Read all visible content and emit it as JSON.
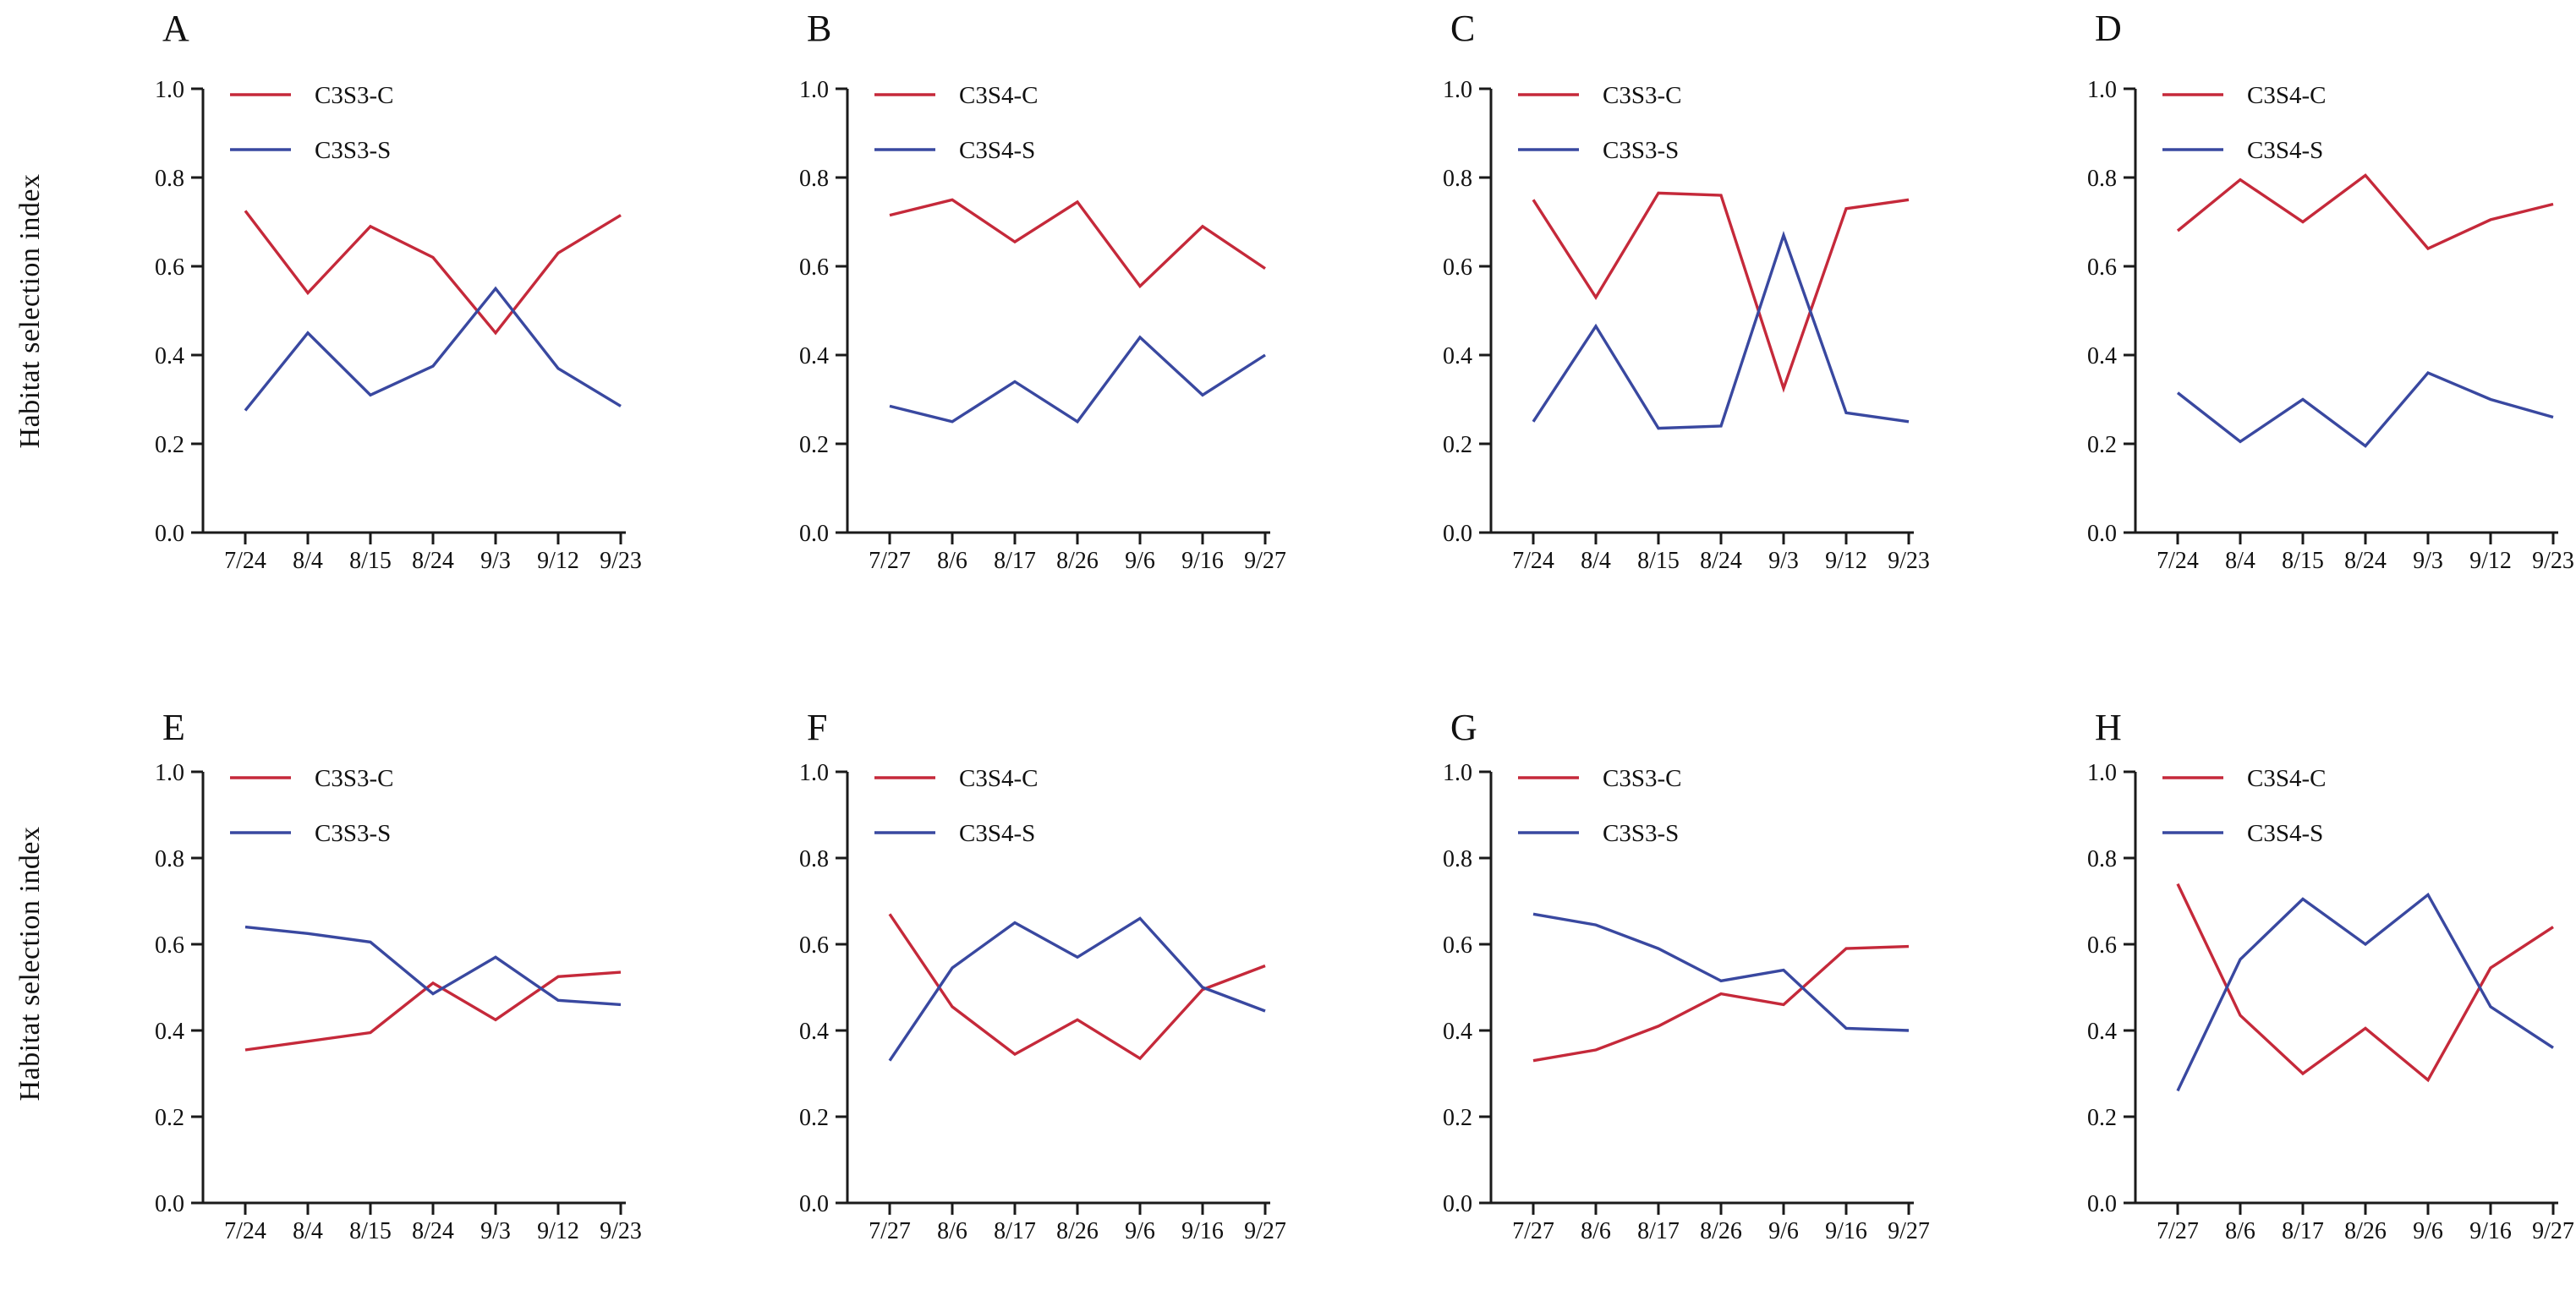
{
  "figure": {
    "ylabel": "Habitat selection index",
    "y_tick_labels": [
      "0.0",
      "0.2",
      "0.4",
      "0.6",
      "0.8",
      "1.0"
    ],
    "colors": {
      "series_c": "#C5293A",
      "series_s": "#3948A0",
      "axis": "#1A1A1A"
    }
  },
  "chart_data": [
    {
      "type": "line",
      "panel": "A",
      "ylim": [
        0,
        1
      ],
      "grid": false,
      "legend_position": "top-left",
      "x": [
        "7/24",
        "8/4",
        "8/15",
        "8/24",
        "9/3",
        "9/12",
        "9/23"
      ],
      "series": [
        {
          "name": "C3S3-C",
          "color_key": "series_c",
          "values": [
            0.725,
            0.54,
            0.69,
            0.62,
            0.45,
            0.63,
            0.715
          ]
        },
        {
          "name": "C3S3-S",
          "color_key": "series_s",
          "values": [
            0.275,
            0.45,
            0.31,
            0.375,
            0.55,
            0.37,
            0.285
          ]
        }
      ]
    },
    {
      "type": "line",
      "panel": "B",
      "ylim": [
        0,
        1
      ],
      "grid": false,
      "legend_position": "top-left",
      "x": [
        "7/27",
        "8/6",
        "8/17",
        "8/26",
        "9/6",
        "9/16",
        "9/27"
      ],
      "series": [
        {
          "name": "C3S4-C",
          "color_key": "series_c",
          "values": [
            0.715,
            0.75,
            0.655,
            0.745,
            0.555,
            0.69,
            0.595
          ]
        },
        {
          "name": "C3S4-S",
          "color_key": "series_s",
          "values": [
            0.285,
            0.25,
            0.34,
            0.25,
            0.44,
            0.31,
            0.4
          ]
        }
      ]
    },
    {
      "type": "line",
      "panel": "C",
      "ylim": [
        0,
        1
      ],
      "grid": false,
      "legend_position": "top-left",
      "x": [
        "7/24",
        "8/4",
        "8/15",
        "8/24",
        "9/3",
        "9/12",
        "9/23"
      ],
      "series": [
        {
          "name": "C3S3-C",
          "color_key": "series_c",
          "values": [
            0.75,
            0.53,
            0.765,
            0.76,
            0.325,
            0.73,
            0.75
          ]
        },
        {
          "name": "C3S3-S",
          "color_key": "series_s",
          "values": [
            0.25,
            0.465,
            0.235,
            0.24,
            0.67,
            0.27,
            0.25
          ]
        }
      ]
    },
    {
      "type": "line",
      "panel": "D",
      "ylim": [
        0,
        1
      ],
      "grid": false,
      "legend_position": "top-left",
      "x": [
        "7/24",
        "8/4",
        "8/15",
        "8/24",
        "9/3",
        "9/12",
        "9/23"
      ],
      "series": [
        {
          "name": "C3S4-C",
          "color_key": "series_c",
          "values": [
            0.68,
            0.795,
            0.7,
            0.805,
            0.64,
            0.705,
            0.74
          ]
        },
        {
          "name": "C3S4-S",
          "color_key": "series_s",
          "values": [
            0.315,
            0.205,
            0.3,
            0.195,
            0.36,
            0.3,
            0.26
          ]
        }
      ]
    },
    {
      "type": "line",
      "panel": "E",
      "ylim": [
        0,
        1
      ],
      "grid": false,
      "legend_position": "top-left",
      "x": [
        "7/24",
        "8/4",
        "8/15",
        "8/24",
        "9/3",
        "9/12",
        "9/23"
      ],
      "series": [
        {
          "name": "C3S3-C",
          "color_key": "series_c",
          "values": [
            0.355,
            0.375,
            0.395,
            0.51,
            0.425,
            0.525,
            0.535
          ]
        },
        {
          "name": "C3S3-S",
          "color_key": "series_s",
          "values": [
            0.64,
            0.625,
            0.605,
            0.485,
            0.57,
            0.47,
            0.46
          ]
        }
      ]
    },
    {
      "type": "line",
      "panel": "F",
      "ylim": [
        0,
        1
      ],
      "grid": false,
      "legend_position": "top-left",
      "x": [
        "7/27",
        "8/6",
        "8/17",
        "8/26",
        "9/6",
        "9/16",
        "9/27"
      ],
      "series": [
        {
          "name": "C3S4-C",
          "color_key": "series_c",
          "values": [
            0.67,
            0.455,
            0.345,
            0.425,
            0.335,
            0.495,
            0.55
          ]
        },
        {
          "name": "C3S4-S",
          "color_key": "series_s",
          "values": [
            0.33,
            0.545,
            0.65,
            0.57,
            0.66,
            0.5,
            0.445
          ]
        }
      ]
    },
    {
      "type": "line",
      "panel": "G",
      "ylim": [
        0,
        1
      ],
      "grid": false,
      "legend_position": "top-left",
      "x": [
        "7/27",
        "8/6",
        "8/17",
        "8/26",
        "9/6",
        "9/16",
        "9/27"
      ],
      "series": [
        {
          "name": "C3S3-C",
          "color_key": "series_c",
          "values": [
            0.33,
            0.355,
            0.41,
            0.485,
            0.46,
            0.59,
            0.595
          ]
        },
        {
          "name": "C3S3-S",
          "color_key": "series_s",
          "values": [
            0.67,
            0.645,
            0.59,
            0.515,
            0.54,
            0.405,
            0.4
          ]
        }
      ]
    },
    {
      "type": "line",
      "panel": "H",
      "ylim": [
        0,
        1
      ],
      "grid": false,
      "legend_position": "top-left",
      "x": [
        "7/27",
        "8/6",
        "8/17",
        "8/26",
        "9/6",
        "9/16",
        "9/27"
      ],
      "series": [
        {
          "name": "C3S4-C",
          "color_key": "series_c",
          "values": [
            0.74,
            0.435,
            0.3,
            0.405,
            0.285,
            0.545,
            0.64
          ]
        },
        {
          "name": "C3S4-S",
          "color_key": "series_s",
          "values": [
            0.26,
            0.565,
            0.705,
            0.6,
            0.715,
            0.455,
            0.36
          ]
        }
      ]
    }
  ]
}
